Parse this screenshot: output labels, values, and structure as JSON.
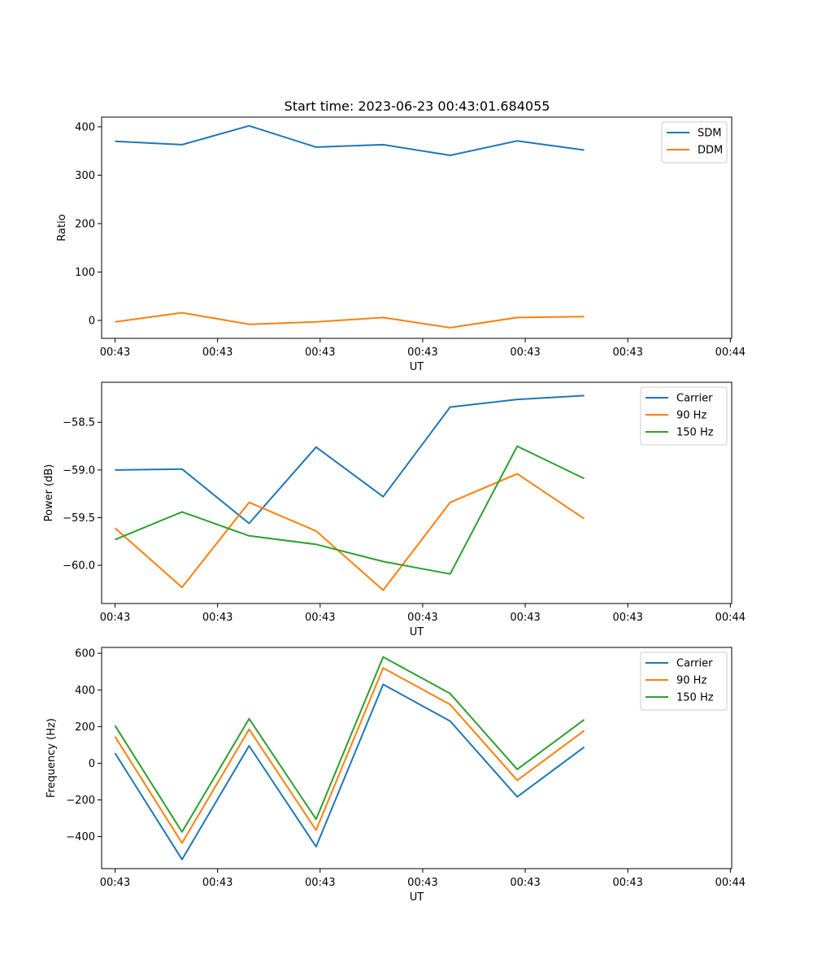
{
  "title": "Start time: 2023-06-23 00:43:01.684055",
  "colors": {
    "blue": "#1f77b4",
    "orange": "#ff7f0e",
    "green": "#2ca02c"
  },
  "chart_data": [
    {
      "type": "line",
      "xlabel": "UT",
      "ylabel": "Ratio",
      "x": [
        1,
        2,
        3,
        4,
        5,
        6,
        7,
        8
      ],
      "xlim": [
        0.8,
        10.2
      ],
      "ylim": [
        -37,
        420
      ],
      "xticks": [
        1,
        2.53,
        4.06,
        5.59,
        7.12,
        8.65,
        10.18
      ],
      "xtick_labels": [
        "00:43",
        "00:43",
        "00:43",
        "00:43",
        "00:43",
        "00:43",
        "00:44"
      ],
      "yticks": [
        0,
        100,
        200,
        300,
        400
      ],
      "ytick_labels": [
        "0",
        "100",
        "200",
        "300",
        "400"
      ],
      "legend_loc": "upper right",
      "series": [
        {
          "name": "SDM",
          "color": "#1f77b4",
          "values": [
            370,
            363,
            402,
            358,
            363,
            341,
            371,
            352
          ]
        },
        {
          "name": "DDM",
          "color": "#ff7f0e",
          "values": [
            -3,
            16,
            -8,
            -3,
            6,
            -15,
            6,
            8
          ]
        }
      ]
    },
    {
      "type": "line",
      "xlabel": "UT",
      "ylabel": "Power (dB)",
      "x": [
        1,
        2,
        3,
        4,
        5,
        6,
        7,
        8
      ],
      "xlim": [
        0.8,
        10.2
      ],
      "ylim": [
        -60.4,
        -58.08
      ],
      "xticks": [
        1,
        2.53,
        4.06,
        5.59,
        7.12,
        8.65,
        10.18
      ],
      "xtick_labels": [
        "00:43",
        "00:43",
        "00:43",
        "00:43",
        "00:43",
        "00:43",
        "00:44"
      ],
      "yticks": [
        -60.0,
        -59.5,
        -59.0,
        -58.5
      ],
      "ytick_labels": [
        "−60.0",
        "−59.5",
        "−59.0",
        "−58.5"
      ],
      "legend_loc": "upper right",
      "series": [
        {
          "name": "Carrier",
          "color": "#1f77b4",
          "values": [
            -59.0,
            -58.99,
            -59.56,
            -58.76,
            -59.28,
            -58.34,
            -58.26,
            -58.22
          ]
        },
        {
          "name": "90 Hz",
          "color": "#ff7f0e",
          "values": [
            -59.61,
            -60.23,
            -59.34,
            -59.64,
            -60.26,
            -59.34,
            -59.04,
            -59.51
          ]
        },
        {
          "name": "150 Hz",
          "color": "#2ca02c",
          "values": [
            -59.73,
            -59.44,
            -59.69,
            -59.78,
            -59.96,
            -60.09,
            -58.75,
            -59.09
          ]
        }
      ]
    },
    {
      "type": "line",
      "xlabel": "UT",
      "ylabel": "Frequency (Hz)",
      "x": [
        1,
        2,
        3,
        4,
        5,
        6,
        7,
        8
      ],
      "xlim": [
        0.8,
        10.2
      ],
      "ylim": [
        -575,
        632
      ],
      "xticks": [
        1,
        2.53,
        4.06,
        5.59,
        7.12,
        8.65,
        10.18
      ],
      "xtick_labels": [
        "00:43",
        "00:43",
        "00:43",
        "00:43",
        "00:43",
        "00:43",
        "00:44"
      ],
      "yticks": [
        -400,
        -200,
        0,
        200,
        400,
        600
      ],
      "ytick_labels": [
        "−400",
        "−200",
        "0",
        "200",
        "400",
        "600"
      ],
      "legend_loc": "upper right",
      "series": [
        {
          "name": "Carrier",
          "color": "#1f77b4",
          "values": [
            55,
            -525,
            95,
            -455,
            430,
            230,
            -183,
            88
          ]
        },
        {
          "name": "90 Hz",
          "color": "#ff7f0e",
          "values": [
            145,
            -435,
            185,
            -365,
            520,
            320,
            -93,
            178
          ]
        },
        {
          "name": "150 Hz",
          "color": "#2ca02c",
          "values": [
            205,
            -375,
            243,
            -305,
            580,
            380,
            -33,
            238
          ]
        }
      ]
    }
  ]
}
